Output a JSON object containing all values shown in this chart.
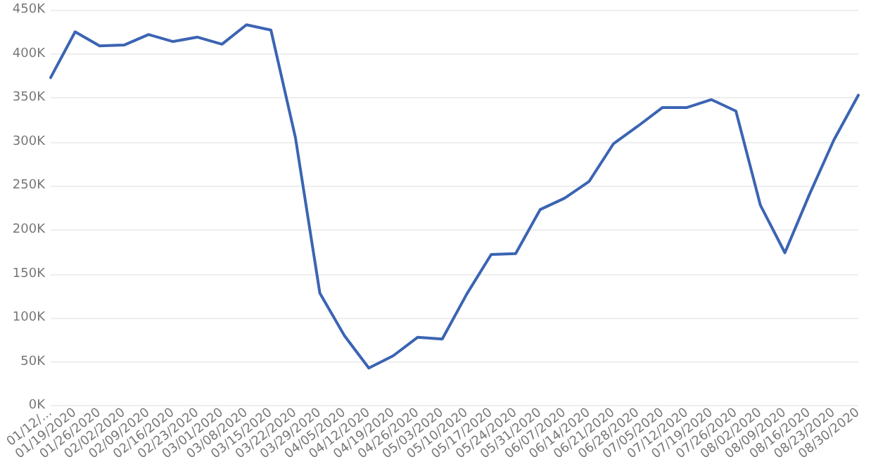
{
  "chart_data": {
    "type": "line",
    "categories": [
      "01/12/...",
      "01/19/2020",
      "01/26/2020",
      "02/02/2020",
      "02/09/2020",
      "02/16/2020",
      "02/23/2020",
      "03/01/2020",
      "03/08/2020",
      "03/15/2020",
      "03/22/2020",
      "03/29/2020",
      "04/05/2020",
      "04/12/2020",
      "04/19/2020",
      "04/26/2020",
      "05/03/2020",
      "05/10/2020",
      "05/17/2020",
      "05/24/2020",
      "05/31/2020",
      "06/07/2020",
      "06/14/2020",
      "06/21/2020",
      "06/28/2020",
      "07/05/2020",
      "07/12/2020",
      "07/19/2020",
      "07/26/2020",
      "08/02/2020",
      "08/09/2020",
      "08/16/2020",
      "08/23/2020",
      "08/30/2020"
    ],
    "series": [
      {
        "color": "#3b64b3",
        "values": [
          373000,
          425000,
          409000,
          410000,
          422000,
          414000,
          419000,
          411000,
          433000,
          427000,
          305000,
          128000,
          80000,
          43000,
          57000,
          78000,
          76000,
          127000,
          172000,
          173000,
          223000,
          236000,
          255000,
          298000,
          318000,
          339000,
          339000,
          348000,
          335000,
          228000,
          174000,
          240000,
          302000,
          353000
        ]
      }
    ],
    "ylim": [
      0,
      450000
    ],
    "yticks": [
      {
        "value": 0,
        "label": "0K"
      },
      {
        "value": 50000,
        "label": "50K"
      },
      {
        "value": 100000,
        "label": "100K"
      },
      {
        "value": 150000,
        "label": "150K"
      },
      {
        "value": 200000,
        "label": "200K"
      },
      {
        "value": 250000,
        "label": "250K"
      },
      {
        "value": 300000,
        "label": "300K"
      },
      {
        "value": 350000,
        "label": "350K"
      },
      {
        "value": 400000,
        "label": "400K"
      },
      {
        "value": 450000,
        "label": "450K"
      }
    ],
    "grid": "y",
    "marker": "none",
    "line_style": "solid"
  }
}
